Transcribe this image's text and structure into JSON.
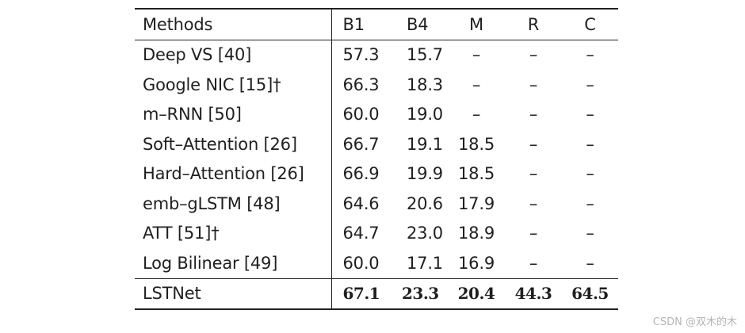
{
  "table": {
    "headers": [
      "Methods",
      "B1",
      "B4",
      "M",
      "R",
      "C"
    ],
    "rows": [
      {
        "method": "Deep VS [40]",
        "b1": "57.3",
        "b4": "15.7",
        "m": "–",
        "r": "–",
        "c": "–"
      },
      {
        "method": "Google NIC [15]†",
        "b1": "66.3",
        "b4": "18.3",
        "m": "–",
        "r": "–",
        "c": "–"
      },
      {
        "method": "m–RNN [50]",
        "b1": "60.0",
        "b4": "19.0",
        "m": "–",
        "r": "–",
        "c": "–"
      },
      {
        "method": "Soft–Attention [26]",
        "b1": "66.7",
        "b4": "19.1",
        "m": "18.5",
        "r": "–",
        "c": "–"
      },
      {
        "method": "Hard–Attention [26]",
        "b1": "66.9",
        "b4": "19.9",
        "m": "18.5",
        "r": "–",
        "c": "–"
      },
      {
        "method": "emb–gLSTM [48]",
        "b1": "64.6",
        "b4": "20.6",
        "m": "17.9",
        "r": "–",
        "c": "–"
      },
      {
        "method": "ATT [51]†",
        "b1": "64.7",
        "b4": "23.0",
        "m": "18.9",
        "r": "–",
        "c": "–"
      },
      {
        "method": "Log Bilinear [49]",
        "b1": "60.0",
        "b4": "17.1",
        "m": "16.9",
        "r": "–",
        "c": "–"
      }
    ],
    "final_row": {
      "method": "LSTNet",
      "b1": "67.1",
      "b4": "23.3",
      "m": "20.4",
      "r": "44.3",
      "c": "64.5"
    }
  },
  "watermark": "CSDN @双木的木"
}
